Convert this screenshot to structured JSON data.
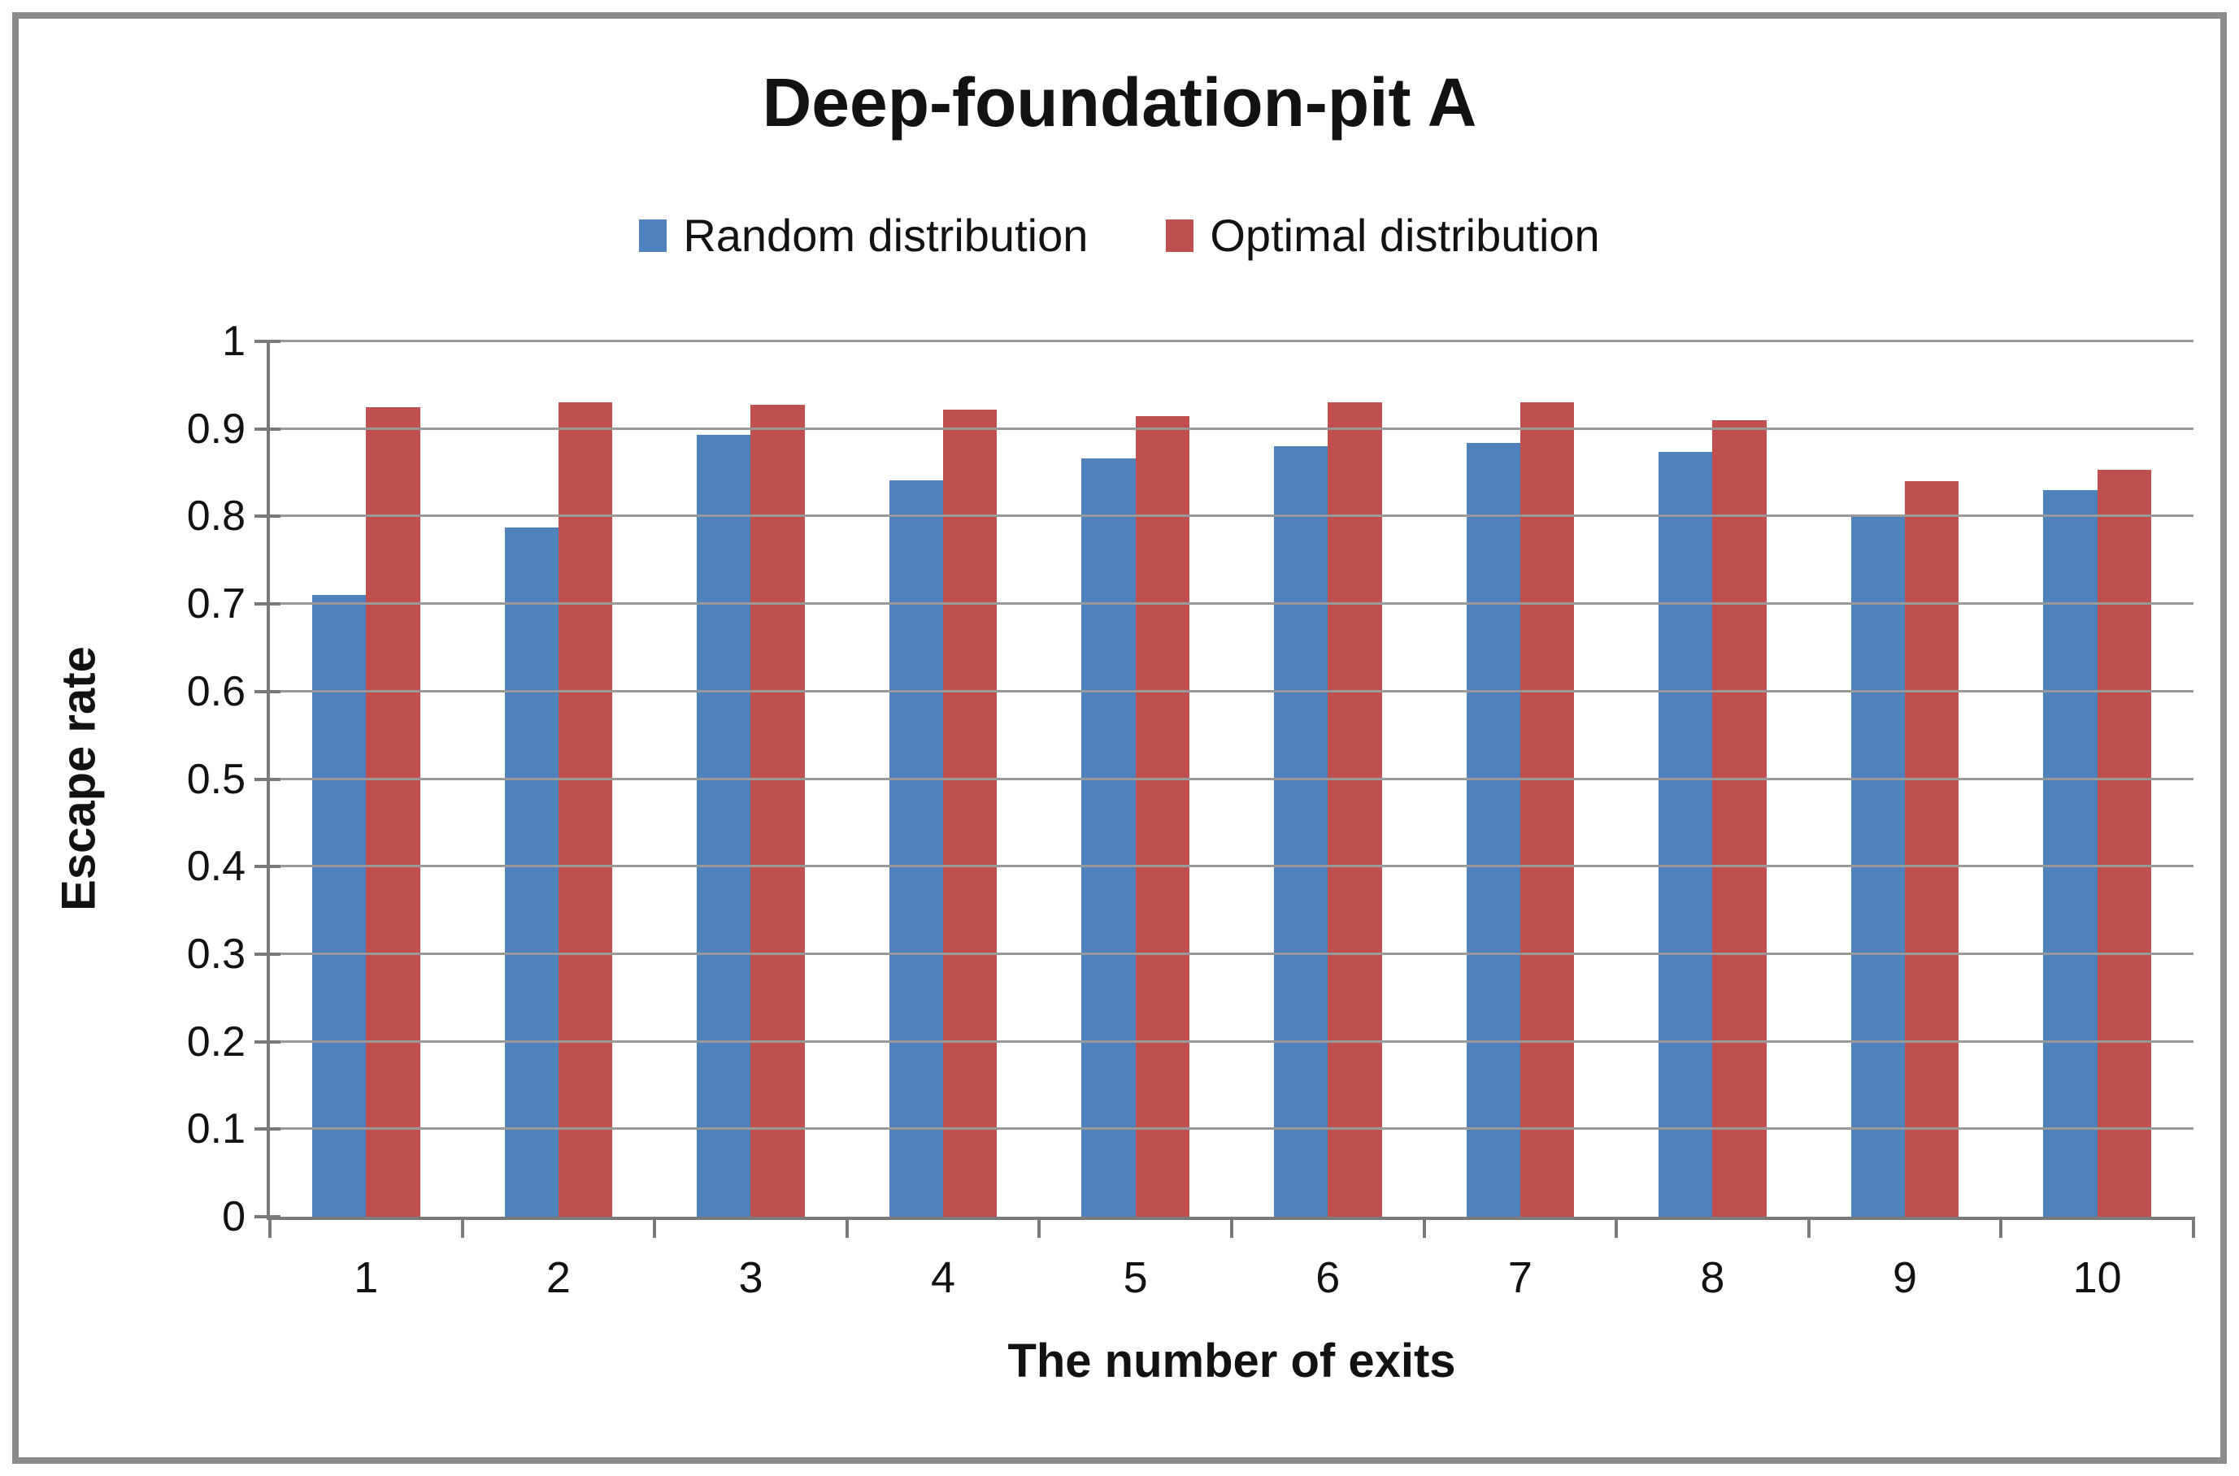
{
  "window": {
    "background": "#ffffff",
    "frame_color": "#8a8a8a"
  },
  "chart_data": {
    "type": "bar",
    "title": "Deep-foundation-pit A",
    "xlabel": "The number of exits",
    "ylabel": "Escape rate",
    "categories": [
      "1",
      "2",
      "3",
      "4",
      "5",
      "6",
      "7",
      "8",
      "9",
      "10"
    ],
    "series": [
      {
        "name": "Random distribution",
        "color": "#4F81BD",
        "values": [
          0.71,
          0.787,
          0.893,
          0.841,
          0.866,
          0.88,
          0.884,
          0.874,
          0.8,
          0.83
        ]
      },
      {
        "name": "Optimal distribution",
        "color": "#C0504D",
        "values": [
          0.925,
          0.93,
          0.928,
          0.922,
          0.915,
          0.93,
          0.93,
          0.91,
          0.84,
          0.853
        ]
      }
    ],
    "ylim": [
      0,
      1
    ],
    "ytick_step": 0.1,
    "yticks": [
      "0",
      "0.1",
      "0.2",
      "0.3",
      "0.4",
      "0.5",
      "0.6",
      "0.7",
      "0.8",
      "0.9",
      "1"
    ],
    "grid": true,
    "legend_position": "top-center",
    "gridline_color": "#999999",
    "axis_color": "#7a7a7a"
  }
}
